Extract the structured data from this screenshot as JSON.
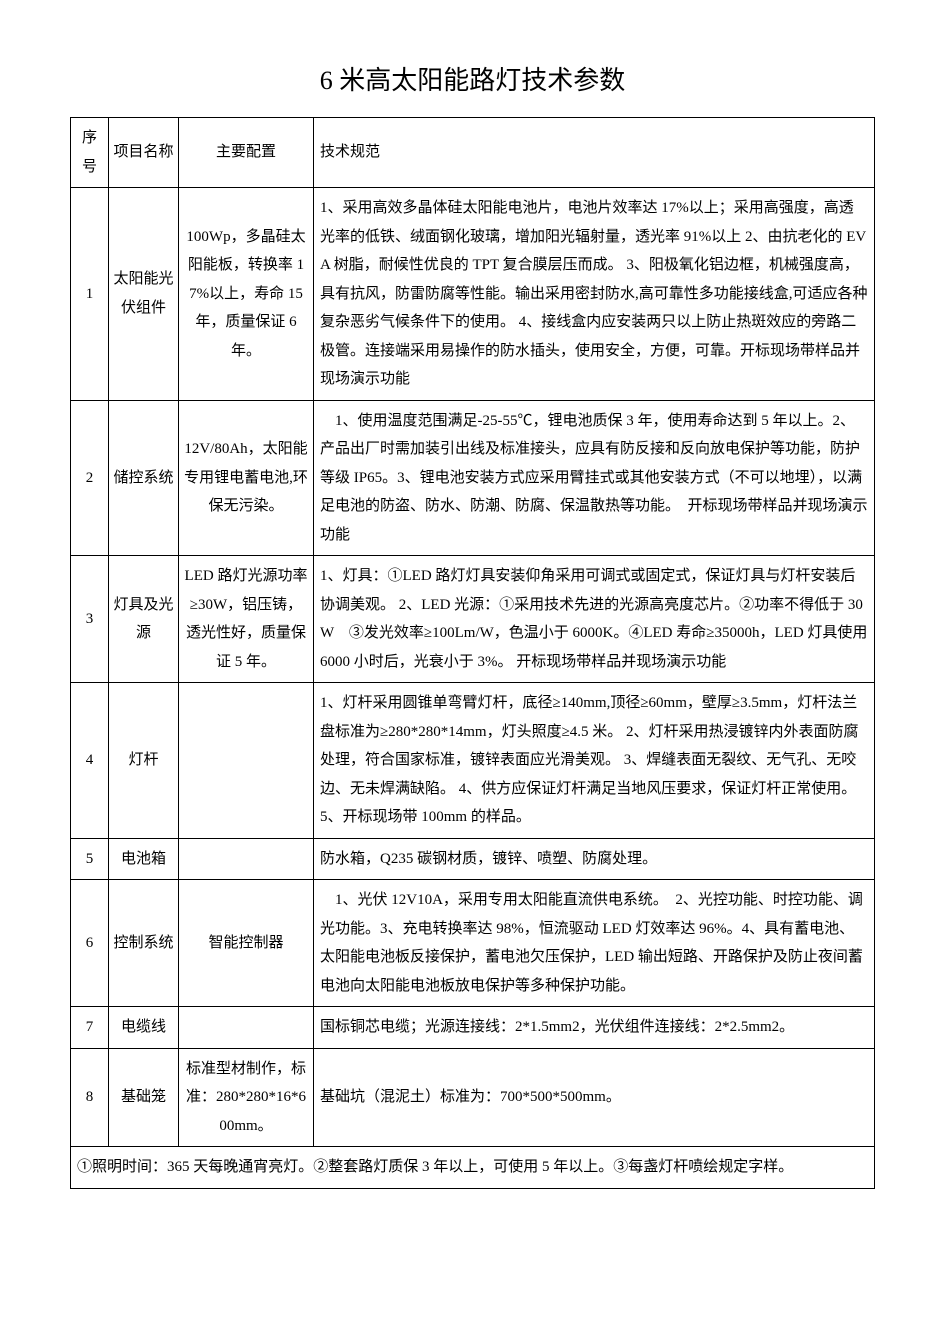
{
  "title": "6 米高太阳能路灯技术参数",
  "columns": [
    "序号",
    "项目名称",
    "主要配置",
    "技术规范"
  ],
  "rows": [
    {
      "index": "1",
      "name": "太阳能光伏组件",
      "config": "100Wp，多晶硅太阳能板，转换率 17%以上，寿命 15 年，质量保证 6 年。",
      "spec": "1、采用高效多晶体硅太阳能电池片，电池片效率达 17%以上；采用高强度，高透光率的低铁、绒面钢化玻璃，增加阳光辐射量，透光率 91%以上\n2、由抗老化的 EVA 树脂，耐候性优良的 TPT 复合膜层压而成。\n3、阳极氧化铝边框，机械强度高，具有抗风，防雷防腐等性能。输出采用密封防水,高可靠性多功能接线盒,可适应各种复杂恶劣气候条件下的使用。\n4、接线盒内应安装两只以上防止热斑效应的旁路二极管。连接端采用易操作的防水插头，使用安全，方便，可靠。开标现场带样品并现场演示功能"
    },
    {
      "index": "2",
      "name": "储控系统",
      "config": "12V/80Ah，太阳能专用锂电蓄电池,环保无污染。",
      "spec": "　1、使用温度范围满足-25-55℃，锂电池质保 3 年，使用寿命达到 5 年以上。2、产品出厂时需加装引出线及标准接头，应具有防反接和反向放电保护等功能，防护等级 IP65。3、锂电池安装方式应采用臂挂式或其他安装方式（不可以地埋），以满足电池的防盗、防水、防潮、防腐、保温散热等功能。　开标现场带样品并现场演示功能"
    },
    {
      "index": "3",
      "name": "灯具及光源",
      "config": "LED 路灯光源功率≥30W，铝压铸，透光性好，质量保证 5 年。",
      "spec": "1、灯具：①LED 路灯灯具安装仰角采用可调式或固定式，保证灯具与灯杆安装后协调美观。\n2、LED 光源：①采用技术先进的光源高亮度芯片。②功率不得低于 30W　③发光效率≥100Lm/W，色温小于 6000K。④LED 寿命≥35000h，LED 灯具使用 6000 小时后，光衰小于 3%。\n开标现场带样品并现场演示功能"
    },
    {
      "index": "4",
      "name": "灯杆",
      "config": "",
      "spec": "1、灯杆采用圆锥单弯臂灯杆，底径≥140mm,顶径≥60mm，壁厚≥3.5mm，灯杆法兰盘标准为≥280*280*14mm，灯头照度≥4.5 米。\n2、灯杆采用热浸镀锌内外表面防腐处理，符合国家标准，镀锌表面应光滑美观。\n3、焊缝表面无裂纹、无气孔、无咬边、无未焊满缺陷。\n4、供方应保证灯杆满足当地风压要求，保证灯杆正常使用。\n5、开标现场带 100mm 的样品。"
    },
    {
      "index": "5",
      "name": "电池箱",
      "config": "",
      "spec": "防水箱，Q235 碳钢材质，镀锌、喷塑、防腐处理。"
    },
    {
      "index": "6",
      "name": "控制系统",
      "config": "智能控制器",
      "spec": "　1、光伏 12V10A，采用专用太阳能直流供电系统。　2、光控功能、时控功能、调光功能。3、充电转换率达 98%，恒流驱动 LED 灯效率达 96%。4、具有蓄电池、太阳能电池板反接保护，蓄电池欠压保护，LED 输出短路、开路保护及防止夜间蓄电池向太阳能电池板放电保护等多种保护功能。"
    },
    {
      "index": "7",
      "name": "电缆线",
      "config": "",
      "spec": "国标铜芯电缆；光源连接线：2*1.5mm2，光伏组件连接线：2*2.5mm2。"
    },
    {
      "index": "8",
      "name": "基础笼",
      "config": "标准型材制作，标准：280*280*16*600mm。",
      "spec": "基础坑（混泥土）标准为：700*500*500mm。"
    }
  ],
  "footer": "①照明时间：365 天每晚通宵亮灯。②整套路灯质保 3 年以上，可使用 5 年以上。③每盏灯杆喷绘规定字样。",
  "style": {
    "background_color": "#ffffff",
    "text_color": "#000000",
    "border_color": "#000000",
    "title_fontsize": 26,
    "body_fontsize": 15,
    "font_family": "SimSun"
  }
}
